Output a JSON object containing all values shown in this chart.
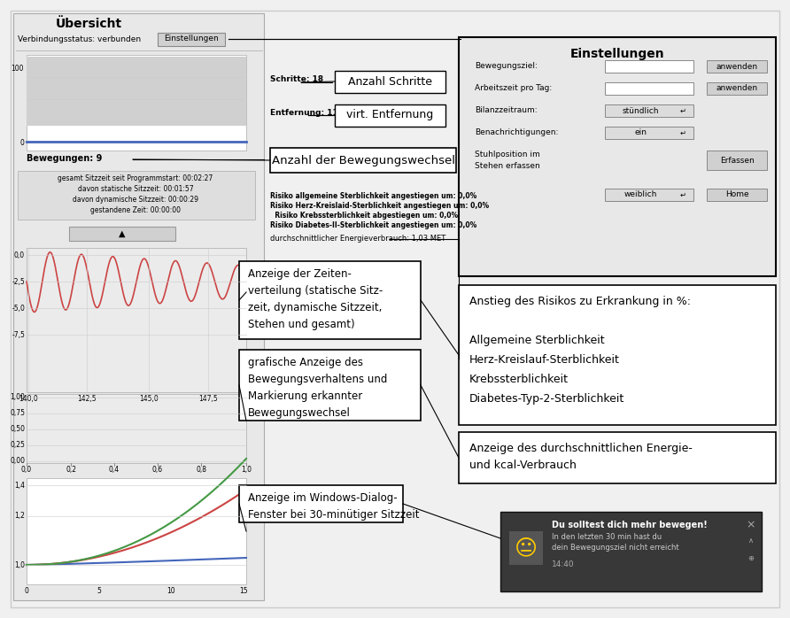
{
  "bg_color": "#f0f0f0",
  "title": "Übersicht",
  "connection_status": "Verbindungsstatus: verbunden",
  "einstellungen_btn": "Einstellungen",
  "schritte_label": "Schritte: 18",
  "entfernung_label": "Entfernung: 11,5 m",
  "bewegungen_label": "Bewegungen: 9",
  "sitzzeit_text": "gesamt Sitzzeit seit Programmstart: 00:02:27\ndavon statische Sitzzeit: 00:01:57\ndavon dynamische Sitzzeit: 00:00:29\ngestandene Zeit: 00:00:00",
  "risiko_text": "Risiko allgemeine Sterblichkeit angestiegen um: 0,0%\nRisiko Herz-Kreislaid-Sterblichkeit angestiegen um: 0,0%\n  Risiko Krebssterblichkeit abgestiegen um: 0,0%\nRisiko Diabetes-II-Sterblichkeit angestiegen um: 0,0%",
  "energie_label": "durchschnittlicher Energieverbrauch: 1,03 MET",
  "annotation_anzahl_schritte": "Anzahl Schritte",
  "annotation_virt_entfernung": "virt. Entfernung",
  "annotation_bewegungswechsel": "Anzahl der Bewegungswechsel",
  "annotation_zeitenverteilung": "Anzeige der Zeiten-\nverteilung (statische Sitz-\nzeit, dynamische Sitzzeit,\nStehen und gesamt)",
  "annotation_bewegungsverhalten": "grafische Anzeige des\nBewegungsverhaltens und\nMarkierung erkannter\nBewegungswechsel",
  "annotation_windows_dialog": "Anzeige im Windows-Dialog-\nFenster bei 30-minütiger Sitzzeit",
  "annotation_risiko": "Anstieg des Risikos zu Erkrankung in %:\n\nAllgemeine Sterblichkeit\nHerz-Kreislauf-Sterblichkeit\nKrebssterblichkeit\nDiabetes-Typ-2-Sterblichkeit",
  "annotation_energie": "Anzeige des durchschnittlichen Energie-\nund kcal-Verbrauch",
  "einstellungen_panel_title": "Einstellungen",
  "notification_title": "Du solltest dich mehr bewegen!",
  "notification_text": "In den letzten 30 min hast du\ndein Bewegungsziel nicht erreicht",
  "notification_time": "14:40",
  "bg_panel": "#e8e8e8",
  "white": "#ffffff",
  "black": "#000000",
  "gray_light": "#d8d8d8",
  "gray_med": "#cccccc",
  "gray_chart": "#e0e0e0",
  "red_line": "#cc4444",
  "blue_line": "#4466bb",
  "green_line": "#449944",
  "notif_bg": "#383838",
  "btn_color": "#d0d0d0",
  "dropdown_color": "#e0e0e0"
}
